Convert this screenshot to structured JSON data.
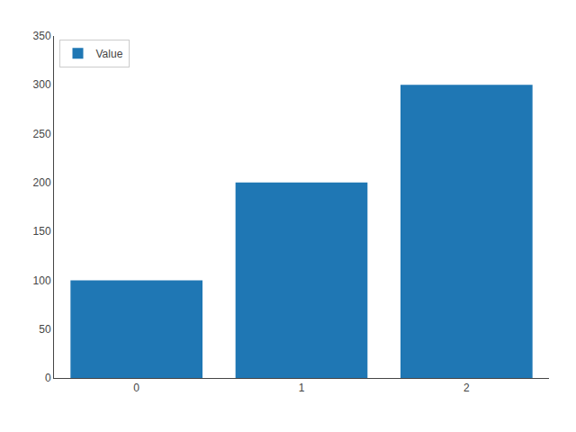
{
  "chart_data": {
    "type": "bar",
    "categories": [
      0,
      1,
      2
    ],
    "series": [
      {
        "name": "Value",
        "color": "#1f77b4",
        "values": [
          100,
          200,
          300
        ]
      }
    ],
    "ylim": [
      0,
      350
    ],
    "yticks": [
      0,
      50,
      100,
      150,
      200,
      250,
      300,
      350
    ],
    "grid": false,
    "legend": "upper left"
  }
}
